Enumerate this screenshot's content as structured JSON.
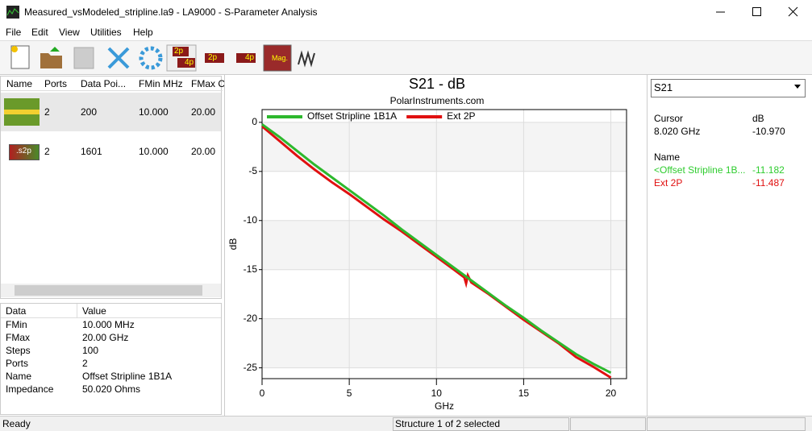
{
  "window": {
    "title": "Measured_vsModeled_stripline.la9 - LA9000 - S-Parameter Analysis"
  },
  "menu": [
    "File",
    "Edit",
    "View",
    "Utilities",
    "Help"
  ],
  "toolbar": {
    "labels": [
      "2p",
      "4p",
      "2p",
      "4p",
      "Mag."
    ]
  },
  "structure_list": {
    "columns": [
      "Name",
      "Ports",
      "Data Poi...",
      "FMin MHz",
      "FMax C"
    ],
    "rows": [
      {
        "ports": "2",
        "data_points": "200",
        "fmin": "10.000",
        "fmax": "20.00"
      },
      {
        "icon_label": ".s2p",
        "ports": "2",
        "data_points": "1601",
        "fmin": "10.000",
        "fmax": "20.00"
      }
    ]
  },
  "properties": {
    "columns": [
      "Data",
      "Value"
    ],
    "rows": [
      [
        "FMin",
        "10.000 MHz"
      ],
      [
        "FMax",
        "20.00 GHz"
      ],
      [
        "Steps",
        "100"
      ],
      [
        "Ports",
        "2"
      ],
      [
        "Name",
        "Offset Stripline 1B1A"
      ],
      [
        "Impedance",
        "50.020 Ohms"
      ]
    ]
  },
  "chart_data": {
    "type": "line",
    "title": "S21 - dB",
    "subtitle": "PolarInstruments.com",
    "x_label": "GHz",
    "y_label": "dB",
    "xlim": [
      0,
      20.9
    ],
    "ylim": [
      -26.1,
      1.3
    ],
    "xticks": [
      0,
      5,
      10,
      15,
      20
    ],
    "yticks": [
      0,
      -5,
      -10,
      -15,
      -20,
      -25
    ],
    "grid": true,
    "legend": "top",
    "series": [
      {
        "name": "Offset Stripline 1B1A",
        "color": "#2db82d",
        "x": [
          0,
          1,
          2,
          3,
          4,
          5,
          6,
          7,
          8,
          9,
          10,
          11,
          12,
          13,
          14,
          15,
          16,
          17,
          18,
          19,
          20
        ],
        "values": [
          -0.2,
          -1.5,
          -2.9,
          -4.3,
          -5.6,
          -6.9,
          -8.2,
          -9.5,
          -10.9,
          -12.2,
          -13.5,
          -14.8,
          -16.1,
          -17.4,
          -18.7,
          -19.9,
          -21.2,
          -22.4,
          -23.6,
          -24.6,
          -25.5
        ]
      },
      {
        "name": "Ext 2P",
        "color": "#e01010",
        "x": [
          0,
          1,
          2,
          3,
          4,
          5,
          6,
          7,
          8,
          9,
          10,
          11,
          11.6,
          11.7,
          11.8,
          12,
          13,
          14,
          15,
          16,
          17,
          18,
          19,
          20
        ],
        "values": [
          -0.4,
          -1.9,
          -3.4,
          -4.8,
          -6.1,
          -7.3,
          -8.6,
          -9.9,
          -11.1,
          -12.4,
          -13.7,
          -15.0,
          -15.8,
          -16.4,
          -15.6,
          -16.3,
          -17.5,
          -18.8,
          -20.1,
          -21.3,
          -22.5,
          -23.9,
          -24.9,
          -26.0
        ]
      }
    ]
  },
  "side_panel": {
    "selector": "S21",
    "cursor_label": "Cursor",
    "unit_label": "dB",
    "cursor_freq": "8.020 GHz",
    "cursor_value": "-10.970",
    "name_label": "Name",
    "entries": [
      {
        "name": "<Offset Stripline 1B...",
        "value": "-11.182"
      },
      {
        "name": "Ext 2P",
        "value": "-11.487"
      }
    ]
  },
  "status": {
    "left": "Ready",
    "middle": "Structure 1 of 2 selected"
  }
}
